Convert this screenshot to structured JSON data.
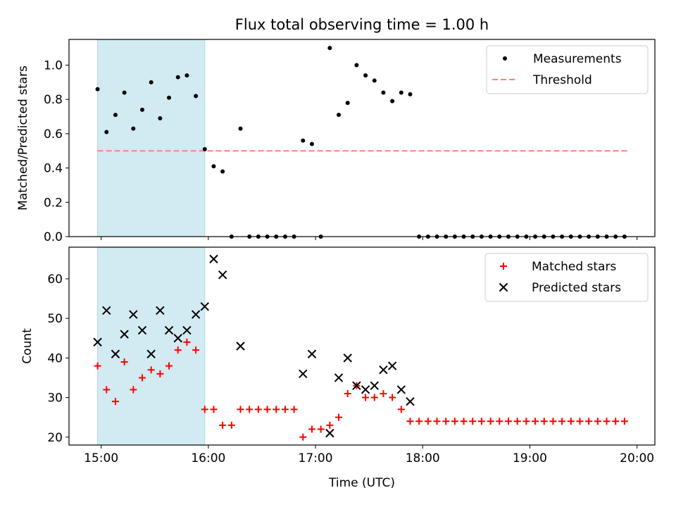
{
  "colors": {
    "measurement": "#000000",
    "threshold": "#ff7f7f",
    "matched": "#ff0000",
    "predicted": "#000000",
    "shade": "#add8e6",
    "legend_border": "#cccccc"
  },
  "chart_data": [
    {
      "type": "scatter",
      "title": "Flux total observing time = 1.00 h",
      "xlabel": "",
      "ylabel": "Matched/Predicted stars",
      "xlim": [
        "14:42",
        "20:10"
      ],
      "ylim": [
        0,
        1.15
      ],
      "x_ticks": [
        {
          "time": "15:00",
          "label": ""
        },
        {
          "time": "16:00",
          "label": ""
        },
        {
          "time": "17:00",
          "label": ""
        },
        {
          "time": "18:00",
          "label": ""
        },
        {
          "time": "19:00",
          "label": ""
        },
        {
          "time": "20:00",
          "label": ""
        }
      ],
      "y_ticks": [
        {
          "value": 0.0,
          "label": "0.0"
        },
        {
          "value": 0.2,
          "label": "0.2"
        },
        {
          "value": 0.4,
          "label": "0.4"
        },
        {
          "value": 0.6,
          "label": "0.6"
        },
        {
          "value": 0.8,
          "label": "0.8"
        },
        {
          "value": 1.0,
          "label": "1.0"
        }
      ],
      "shaded_region": {
        "x_start": "14:58",
        "x_end": "15:58"
      },
      "legend": {
        "placement": "top-right",
        "entries": [
          "Measurements",
          "Threshold"
        ]
      },
      "threshold": {
        "name": "Threshold",
        "value": 0.5,
        "x_start": "14:58",
        "x_end": "19:55",
        "style": "dashed"
      },
      "series": [
        {
          "name": "Measurements",
          "marker": "dot",
          "points": [
            {
              "time": "14:58",
              "y": 0.86
            },
            {
              "time": "15:03",
              "y": 0.61
            },
            {
              "time": "15:08",
              "y": 0.71
            },
            {
              "time": "15:13",
              "y": 0.84
            },
            {
              "time": "15:18",
              "y": 0.63
            },
            {
              "time": "15:23",
              "y": 0.74
            },
            {
              "time": "15:28",
              "y": 0.9
            },
            {
              "time": "15:33",
              "y": 0.69
            },
            {
              "time": "15:38",
              "y": 0.81
            },
            {
              "time": "15:43",
              "y": 0.93
            },
            {
              "time": "15:48",
              "y": 0.94
            },
            {
              "time": "15:53",
              "y": 0.82
            },
            {
              "time": "15:58",
              "y": 0.51
            },
            {
              "time": "16:03",
              "y": 0.41
            },
            {
              "time": "16:08",
              "y": 0.38
            },
            {
              "time": "16:13",
              "y": 0.0
            },
            {
              "time": "16:18",
              "y": 0.63
            },
            {
              "time": "16:23",
              "y": 0.0
            },
            {
              "time": "16:28",
              "y": 0.0
            },
            {
              "time": "16:33",
              "y": 0.0
            },
            {
              "time": "16:38",
              "y": 0.0
            },
            {
              "time": "16:43",
              "y": 0.0
            },
            {
              "time": "16:48",
              "y": 0.0
            },
            {
              "time": "16:53",
              "y": 0.56
            },
            {
              "time": "16:58",
              "y": 0.54
            },
            {
              "time": "17:03",
              "y": 0.0
            },
            {
              "time": "17:08",
              "y": 1.1
            },
            {
              "time": "17:13",
              "y": 0.71
            },
            {
              "time": "17:18",
              "y": 0.78
            },
            {
              "time": "17:23",
              "y": 1.0
            },
            {
              "time": "17:28",
              "y": 0.94
            },
            {
              "time": "17:33",
              "y": 0.91
            },
            {
              "time": "17:38",
              "y": 0.84
            },
            {
              "time": "17:43",
              "y": 0.79
            },
            {
              "time": "17:48",
              "y": 0.84
            },
            {
              "time": "17:53",
              "y": 0.83
            },
            {
              "time": "17:58",
              "y": 0.0
            },
            {
              "time": "18:03",
              "y": 0.0
            },
            {
              "time": "18:08",
              "y": 0.0
            },
            {
              "time": "18:13",
              "y": 0.0
            },
            {
              "time": "18:18",
              "y": 0.0
            },
            {
              "time": "18:23",
              "y": 0.0
            },
            {
              "time": "18:28",
              "y": 0.0
            },
            {
              "time": "18:33",
              "y": 0.0
            },
            {
              "time": "18:38",
              "y": 0.0
            },
            {
              "time": "18:43",
              "y": 0.0
            },
            {
              "time": "18:48",
              "y": 0.0
            },
            {
              "time": "18:53",
              "y": 0.0
            },
            {
              "time": "18:58",
              "y": 0.0
            },
            {
              "time": "19:03",
              "y": 0.0
            },
            {
              "time": "19:08",
              "y": 0.0
            },
            {
              "time": "19:13",
              "y": 0.0
            },
            {
              "time": "19:18",
              "y": 0.0
            },
            {
              "time": "19:23",
              "y": 0.0
            },
            {
              "time": "19:28",
              "y": 0.0
            },
            {
              "time": "19:33",
              "y": 0.0
            },
            {
              "time": "19:38",
              "y": 0.0
            },
            {
              "time": "19:43",
              "y": 0.0
            },
            {
              "time": "19:48",
              "y": 0.0
            },
            {
              "time": "19:53",
              "y": 0.0
            }
          ]
        }
      ]
    },
    {
      "type": "scatter",
      "title": "",
      "xlabel": "Time (UTC)",
      "ylabel": "Count",
      "xlim": [
        "14:42",
        "20:10"
      ],
      "ylim": [
        18,
        68
      ],
      "x_ticks": [
        {
          "time": "15:00",
          "label": "15:00"
        },
        {
          "time": "16:00",
          "label": "16:00"
        },
        {
          "time": "17:00",
          "label": "17:00"
        },
        {
          "time": "18:00",
          "label": "18:00"
        },
        {
          "time": "19:00",
          "label": "19:00"
        },
        {
          "time": "20:00",
          "label": "20:00"
        }
      ],
      "y_ticks": [
        {
          "value": 20,
          "label": "20"
        },
        {
          "value": 30,
          "label": "30"
        },
        {
          "value": 40,
          "label": "40"
        },
        {
          "value": 50,
          "label": "50"
        },
        {
          "value": 60,
          "label": "60"
        }
      ],
      "shaded_region": {
        "x_start": "14:58",
        "x_end": "15:58"
      },
      "legend": {
        "placement": "top-right",
        "entries": [
          "Matched stars",
          "Predicted stars"
        ]
      },
      "series": [
        {
          "name": "Matched stars",
          "marker": "plus",
          "points": [
            {
              "time": "14:58",
              "y": 38
            },
            {
              "time": "15:03",
              "y": 32
            },
            {
              "time": "15:08",
              "y": 29
            },
            {
              "time": "15:13",
              "y": 39
            },
            {
              "time": "15:18",
              "y": 32
            },
            {
              "time": "15:23",
              "y": 35
            },
            {
              "time": "15:28",
              "y": 37
            },
            {
              "time": "15:33",
              "y": 36
            },
            {
              "time": "15:38",
              "y": 38
            },
            {
              "time": "15:43",
              "y": 42
            },
            {
              "time": "15:48",
              "y": 44
            },
            {
              "time": "15:53",
              "y": 42
            },
            {
              "time": "15:58",
              "y": 27
            },
            {
              "time": "16:03",
              "y": 27
            },
            {
              "time": "16:08",
              "y": 23
            },
            {
              "time": "16:13",
              "y": 23
            },
            {
              "time": "16:18",
              "y": 27
            },
            {
              "time": "16:23",
              "y": 27
            },
            {
              "time": "16:28",
              "y": 27
            },
            {
              "time": "16:33",
              "y": 27
            },
            {
              "time": "16:38",
              "y": 27
            },
            {
              "time": "16:43",
              "y": 27
            },
            {
              "time": "16:48",
              "y": 27
            },
            {
              "time": "16:53",
              "y": 20
            },
            {
              "time": "16:58",
              "y": 22
            },
            {
              "time": "17:03",
              "y": 22
            },
            {
              "time": "17:08",
              "y": 23
            },
            {
              "time": "17:13",
              "y": 25
            },
            {
              "time": "17:18",
              "y": 31
            },
            {
              "time": "17:23",
              "y": 33
            },
            {
              "time": "17:28",
              "y": 30
            },
            {
              "time": "17:33",
              "y": 30
            },
            {
              "time": "17:38",
              "y": 31
            },
            {
              "time": "17:43",
              "y": 30
            },
            {
              "time": "17:48",
              "y": 27
            },
            {
              "time": "17:53",
              "y": 24
            },
            {
              "time": "17:58",
              "y": 24
            },
            {
              "time": "18:03",
              "y": 24
            },
            {
              "time": "18:08",
              "y": 24
            },
            {
              "time": "18:13",
              "y": 24
            },
            {
              "time": "18:18",
              "y": 24
            },
            {
              "time": "18:23",
              "y": 24
            },
            {
              "time": "18:28",
              "y": 24
            },
            {
              "time": "18:33",
              "y": 24
            },
            {
              "time": "18:38",
              "y": 24
            },
            {
              "time": "18:43",
              "y": 24
            },
            {
              "time": "18:48",
              "y": 24
            },
            {
              "time": "18:53",
              "y": 24
            },
            {
              "time": "18:58",
              "y": 24
            },
            {
              "time": "19:03",
              "y": 24
            },
            {
              "time": "19:08",
              "y": 24
            },
            {
              "time": "19:13",
              "y": 24
            },
            {
              "time": "19:18",
              "y": 24
            },
            {
              "time": "19:23",
              "y": 24
            },
            {
              "time": "19:28",
              "y": 24
            },
            {
              "time": "19:33",
              "y": 24
            },
            {
              "time": "19:38",
              "y": 24
            },
            {
              "time": "19:43",
              "y": 24
            },
            {
              "time": "19:48",
              "y": 24
            },
            {
              "time": "19:53",
              "y": 24
            }
          ]
        },
        {
          "name": "Predicted stars",
          "marker": "x",
          "points": [
            {
              "time": "14:58",
              "y": 44
            },
            {
              "time": "15:03",
              "y": 52
            },
            {
              "time": "15:08",
              "y": 41
            },
            {
              "time": "15:13",
              "y": 46
            },
            {
              "time": "15:18",
              "y": 51
            },
            {
              "time": "15:23",
              "y": 47
            },
            {
              "time": "15:28",
              "y": 41
            },
            {
              "time": "15:33",
              "y": 52
            },
            {
              "time": "15:38",
              "y": 47
            },
            {
              "time": "15:43",
              "y": 45
            },
            {
              "time": "15:48",
              "y": 47
            },
            {
              "time": "15:53",
              "y": 51
            },
            {
              "time": "15:58",
              "y": 53
            },
            {
              "time": "16:03",
              "y": 65
            },
            {
              "time": "16:08",
              "y": 61
            },
            {
              "time": "16:18",
              "y": 43
            },
            {
              "time": "16:53",
              "y": 36
            },
            {
              "time": "16:58",
              "y": 41
            },
            {
              "time": "17:08",
              "y": 21
            },
            {
              "time": "17:13",
              "y": 35
            },
            {
              "time": "17:18",
              "y": 40
            },
            {
              "time": "17:23",
              "y": 33
            },
            {
              "time": "17:28",
              "y": 32
            },
            {
              "time": "17:33",
              "y": 33
            },
            {
              "time": "17:38",
              "y": 37
            },
            {
              "time": "17:43",
              "y": 38
            },
            {
              "time": "17:48",
              "y": 32
            },
            {
              "time": "17:53",
              "y": 29
            }
          ]
        }
      ]
    }
  ]
}
